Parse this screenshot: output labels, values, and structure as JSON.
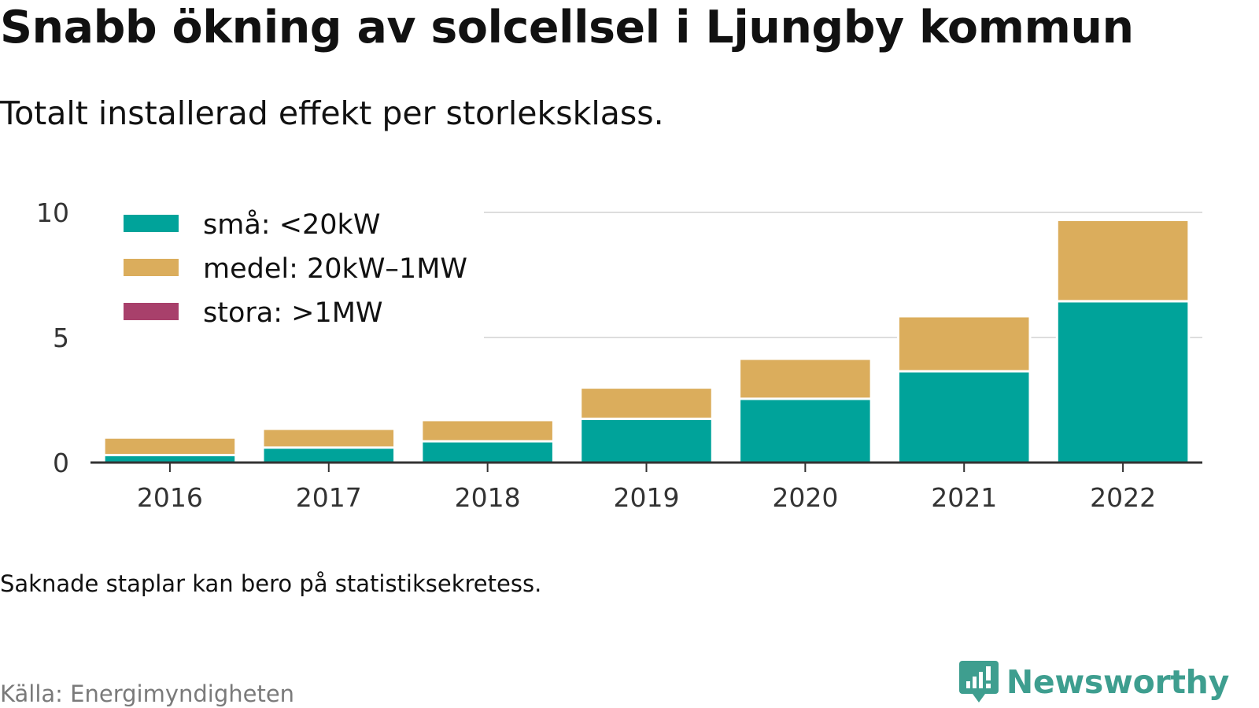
{
  "title": "Snabb ökning av solcellsel i Ljungby kommun",
  "subtitle": "Totalt installerad effekt per storleksklass.",
  "note": "Saknade staplar kan bero på statistiksekretess.",
  "source": "Källa: Energimyndigheten",
  "brand": {
    "name": "Newsworthy",
    "icon": "newsworthy-logo-icon",
    "color": "#3e9e8f"
  },
  "chart_data": {
    "type": "bar",
    "stacked": true,
    "categories": [
      "2016",
      "2017",
      "2018",
      "2019",
      "2020",
      "2021",
      "2022"
    ],
    "series": [
      {
        "name": "små: <20kW",
        "color": "#00a39a",
        "values": [
          0.3,
          0.6,
          0.85,
          1.75,
          2.55,
          3.65,
          6.45
        ]
      },
      {
        "name": "medel: 20kW–1MW",
        "color": "#dbad5c",
        "values": [
          0.7,
          0.75,
          0.85,
          1.25,
          1.6,
          2.2,
          3.25
        ]
      },
      {
        "name": "stora: >1MW",
        "color": "#a8406b",
        "values": [
          0,
          0,
          0,
          0,
          0,
          0,
          0
        ]
      }
    ],
    "ylim": [
      0,
      10
    ],
    "yticks": [
      0,
      5,
      10
    ],
    "grid": true,
    "legend": "top-left"
  }
}
